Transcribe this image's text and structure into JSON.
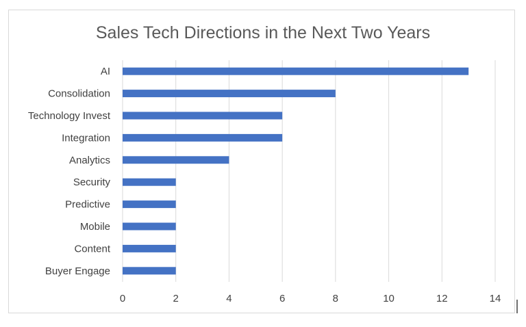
{
  "chart_data": {
    "type": "bar",
    "orientation": "horizontal",
    "title": "Sales Tech Directions in the Next Two Years",
    "xlabel": "",
    "ylabel": "",
    "categories": [
      "AI",
      "Consolidation",
      "Technology Invest",
      "Integration",
      "Analytics",
      "Security",
      "Predictive",
      "Mobile",
      "Content",
      "Buyer Engage"
    ],
    "values": [
      13,
      8,
      6,
      6,
      4,
      2,
      2,
      2,
      2,
      2
    ],
    "xlim": [
      0,
      14
    ],
    "xticks": [
      "0",
      "2",
      "4",
      "6",
      "8",
      "10",
      "12",
      "14"
    ],
    "grid": "vertical",
    "legend": "none",
    "bar_color": "#4472C4"
  }
}
